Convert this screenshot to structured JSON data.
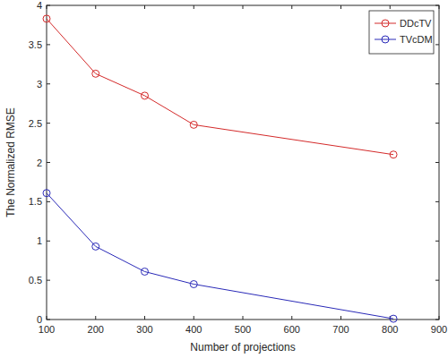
{
  "chart_data": {
    "type": "line",
    "x_label": "Number of projections",
    "y_label": "The Normalized RMSE",
    "x": [
      100,
      200,
      300,
      400,
      807
    ],
    "series": [
      {
        "name": "DDcTV",
        "color": "#d42a2a",
        "values": [
          3.83,
          3.13,
          2.85,
          2.48,
          2.1
        ],
        "marker": "circle",
        "line_style": "solid"
      },
      {
        "name": "TVcDM",
        "color": "#2a2ab8",
        "values": [
          1.61,
          0.93,
          0.61,
          0.45,
          0.01
        ],
        "marker": "circle",
        "line_style": "solid"
      }
    ],
    "xlim": [
      100,
      900
    ],
    "xticks": [
      100,
      200,
      300,
      400,
      500,
      600,
      700,
      800,
      900
    ],
    "ylim": [
      0,
      4
    ],
    "yticks": [
      0,
      0.5,
      1,
      1.5,
      2,
      2.5,
      3,
      3.5,
      4
    ],
    "grid": false,
    "legend": "northeast"
  }
}
